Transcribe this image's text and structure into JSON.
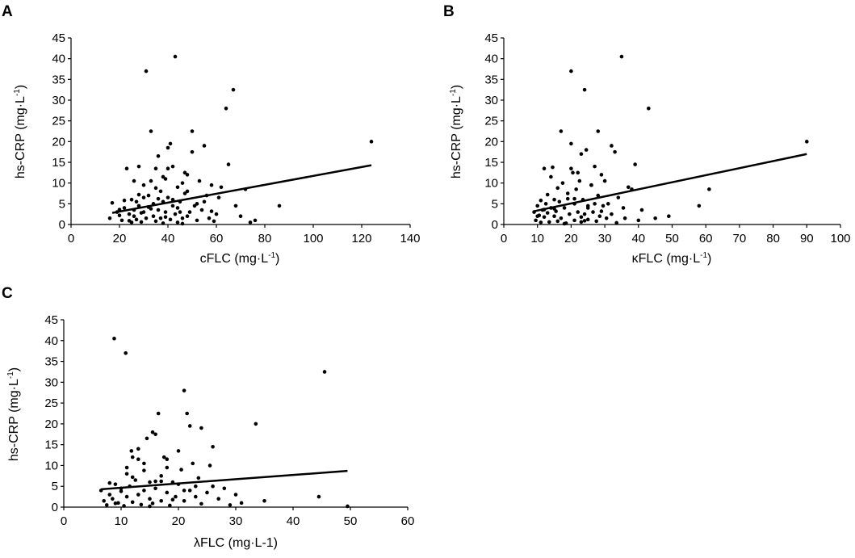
{
  "chart_data": [
    {
      "type": "scatter",
      "panel": "A",
      "xlabel": "cFLC (mg·L-1)",
      "ylabel": "hs-CRP (mg·L-1)",
      "xlim": [
        0,
        140
      ],
      "ylim": [
        0,
        45
      ],
      "xticks": [
        0,
        20,
        40,
        60,
        80,
        100,
        120,
        140
      ],
      "yticks": [
        0,
        5,
        10,
        15,
        20,
        25,
        30,
        35,
        40,
        45
      ],
      "trendline": [
        [
          17,
          2.8
        ],
        [
          124,
          14.3
        ]
      ],
      "points": [
        [
          17,
          5.2
        ],
        [
          16,
          1.5
        ],
        [
          19,
          3.0
        ],
        [
          20,
          2.2
        ],
        [
          21,
          1.0
        ],
        [
          22,
          4.0
        ],
        [
          23,
          13.5
        ],
        [
          24,
          2.5
        ],
        [
          25,
          6.0
        ],
        [
          25,
          0.5
        ],
        [
          26,
          10.5
        ],
        [
          26,
          3.5
        ],
        [
          27,
          5.5
        ],
        [
          27,
          1.2
        ],
        [
          28,
          14.0
        ],
        [
          28,
          4.5
        ],
        [
          29,
          2.8
        ],
        [
          29,
          0.6
        ],
        [
          30,
          6.5
        ],
        [
          30,
          3.0
        ],
        [
          31,
          37.0
        ],
        [
          31,
          1.5
        ],
        [
          32,
          7.0
        ],
        [
          32,
          4.2
        ],
        [
          33,
          22.5
        ],
        [
          33,
          10.5
        ],
        [
          34,
          2.0
        ],
        [
          34,
          5.0
        ],
        [
          35,
          13.5
        ],
        [
          35,
          0.8
        ],
        [
          36,
          16.5
        ],
        [
          36,
          3.5
        ],
        [
          37,
          8.0
        ],
        [
          37,
          1.5
        ],
        [
          38,
          5.5
        ],
        [
          38,
          0.3
        ],
        [
          39,
          11.0
        ],
        [
          39,
          3.0
        ],
        [
          40,
          18.5
        ],
        [
          40,
          6.5
        ],
        [
          41,
          19.5
        ],
        [
          41,
          1.2
        ],
        [
          42,
          14.0
        ],
        [
          42,
          4.5
        ],
        [
          43,
          40.5
        ],
        [
          43,
          2.5
        ],
        [
          44,
          9.0
        ],
        [
          44,
          0.5
        ],
        [
          45,
          5.5
        ],
        [
          45,
          3.0
        ],
        [
          46,
          10.0
        ],
        [
          46,
          1.5
        ],
        [
          47,
          7.5
        ],
        [
          48,
          12.0
        ],
        [
          48,
          2.0
        ],
        [
          49,
          3.0
        ],
        [
          50,
          22.5
        ],
        [
          50,
          17.5
        ],
        [
          51,
          4.5
        ],
        [
          52,
          1.0
        ],
        [
          53,
          10.5
        ],
        [
          54,
          3.5
        ],
        [
          55,
          19.0
        ],
        [
          55,
          5.5
        ],
        [
          56,
          7.0
        ],
        [
          57,
          1.5
        ],
        [
          58,
          9.5
        ],
        [
          59,
          0.8
        ],
        [
          60,
          2.5
        ],
        [
          61,
          6.5
        ],
        [
          62,
          9.0
        ],
        [
          64,
          28.0
        ],
        [
          65,
          14.5
        ],
        [
          67,
          32.5
        ],
        [
          68,
          4.5
        ],
        [
          70,
          2.0
        ],
        [
          72,
          8.5
        ],
        [
          74,
          0.5
        ],
        [
          76,
          1.0
        ],
        [
          86,
          4.5
        ],
        [
          124,
          20.0
        ],
        [
          22,
          5.8
        ],
        [
          28,
          7.2
        ],
        [
          35,
          8.8
        ],
        [
          42,
          6.0
        ],
        [
          47,
          12.5
        ],
        [
          24,
          0.9
        ],
        [
          30,
          9.5
        ],
        [
          38,
          11.5
        ],
        [
          46,
          0.2
        ],
        [
          33,
          3.8
        ],
        [
          36,
          6.2
        ],
        [
          39,
          1.8
        ],
        [
          44,
          4.0
        ],
        [
          52,
          5.0
        ],
        [
          58,
          3.2
        ],
        [
          26,
          2.0
        ],
        [
          20,
          3.6
        ],
        [
          40,
          13.5
        ],
        [
          48,
          8.0
        ]
      ]
    },
    {
      "type": "scatter",
      "panel": "B",
      "xlabel": "κFLC (mg·L-1)",
      "ylabel": "hs-CRP (mg·L-1)",
      "xlim": [
        0,
        100
      ],
      "ylim": [
        0,
        45
      ],
      "xticks": [
        0,
        10,
        20,
        30,
        40,
        50,
        60,
        70,
        80,
        90,
        100
      ],
      "yticks": [
        0,
        5,
        10,
        15,
        20,
        25,
        30,
        35,
        40,
        45
      ],
      "trendline": [
        [
          9,
          3.2
        ],
        [
          90,
          17.0
        ]
      ],
      "points": [
        [
          9,
          3.0
        ],
        [
          9.5,
          1.0
        ],
        [
          10,
          4.5
        ],
        [
          10.5,
          2.2
        ],
        [
          11,
          0.5
        ],
        [
          11.5,
          3.5
        ],
        [
          12,
          13.5
        ],
        [
          12,
          1.8
        ],
        [
          12.5,
          5.0
        ],
        [
          13,
          2.8
        ],
        [
          13.5,
          0.6
        ],
        [
          14,
          4.0
        ],
        [
          14.5,
          13.8
        ],
        [
          15,
          6.0
        ],
        [
          15,
          2.0
        ],
        [
          15.5,
          3.2
        ],
        [
          16,
          0.8
        ],
        [
          16.5,
          5.5
        ],
        [
          17,
          22.5
        ],
        [
          17,
          1.5
        ],
        [
          17.5,
          10.0
        ],
        [
          18,
          4.0
        ],
        [
          18.5,
          0.3
        ],
        [
          19,
          7.5
        ],
        [
          19.5,
          2.5
        ],
        [
          20,
          37.0
        ],
        [
          20,
          19.5
        ],
        [
          20.5,
          12.5
        ],
        [
          21,
          5.0
        ],
        [
          21,
          1.0
        ],
        [
          21.5,
          8.5
        ],
        [
          22,
          3.0
        ],
        [
          22.5,
          10.5
        ],
        [
          23,
          17.0
        ],
        [
          23,
          0.6
        ],
        [
          23.5,
          6.0
        ],
        [
          24,
          32.5
        ],
        [
          24,
          2.5
        ],
        [
          24.5,
          18.0
        ],
        [
          25,
          4.5
        ],
        [
          25,
          1.2
        ],
        [
          26,
          9.5
        ],
        [
          26.5,
          3.0
        ],
        [
          27,
          14.0
        ],
        [
          27.5,
          0.8
        ],
        [
          28,
          22.5
        ],
        [
          28,
          7.0
        ],
        [
          28.5,
          2.0
        ],
        [
          29,
          12.0
        ],
        [
          29.5,
          4.5
        ],
        [
          30,
          10.5
        ],
        [
          30.5,
          1.5
        ],
        [
          31,
          5.0
        ],
        [
          32,
          19.0
        ],
        [
          32,
          2.5
        ],
        [
          33,
          17.5
        ],
        [
          33.5,
          0.4
        ],
        [
          34,
          6.5
        ],
        [
          35,
          40.5
        ],
        [
          35.5,
          4.0
        ],
        [
          36,
          1.5
        ],
        [
          37,
          9.0
        ],
        [
          38,
          8.5
        ],
        [
          39,
          14.5
        ],
        [
          40,
          1.0
        ],
        [
          41,
          3.5
        ],
        [
          43,
          28.0
        ],
        [
          45,
          1.5
        ],
        [
          49,
          2.0
        ],
        [
          58,
          4.5
        ],
        [
          61,
          8.5
        ],
        [
          90,
          20.0
        ],
        [
          11,
          5.8
        ],
        [
          13,
          7.2
        ],
        [
          16,
          8.8
        ],
        [
          19,
          6.2
        ],
        [
          22,
          12.5
        ],
        [
          24,
          0.9
        ],
        [
          26,
          9.5
        ],
        [
          14,
          11.5
        ],
        [
          18,
          0.2
        ],
        [
          15,
          3.8
        ],
        [
          21,
          6.2
        ],
        [
          23,
          1.8
        ],
        [
          25,
          4.0
        ],
        [
          27,
          5.0
        ],
        [
          29,
          3.2
        ],
        [
          10,
          2.0
        ],
        [
          12,
          3.6
        ],
        [
          20,
          13.5
        ]
      ]
    },
    {
      "type": "scatter",
      "panel": "C",
      "xlabel": "λFLC (mg·L-1)",
      "ylabel": "hs-CRP (mg·L-1)",
      "xlim": [
        0,
        60
      ],
      "ylim": [
        0,
        45
      ],
      "xticks": [
        0,
        10,
        20,
        30,
        40,
        50,
        60
      ],
      "yticks": [
        0,
        5,
        10,
        15,
        20,
        25,
        30,
        35,
        40,
        45
      ],
      "trendline": [
        [
          6.5,
          4.3
        ],
        [
          49.5,
          8.7
        ]
      ],
      "points": [
        [
          6.5,
          4.0
        ],
        [
          7,
          1.5
        ],
        [
          7.5,
          0.5
        ],
        [
          8,
          3.0
        ],
        [
          8.5,
          2.0
        ],
        [
          8.8,
          40.5
        ],
        [
          9,
          5.5
        ],
        [
          9.5,
          1.0
        ],
        [
          10,
          4.5
        ],
        [
          10.5,
          0.3
        ],
        [
          10.8,
          37.0
        ],
        [
          11,
          8.0
        ],
        [
          11,
          2.5
        ],
        [
          11.5,
          5.0
        ],
        [
          11.8,
          13.5
        ],
        [
          12,
          12.0
        ],
        [
          12,
          1.2
        ],
        [
          12.5,
          6.5
        ],
        [
          13,
          14.0
        ],
        [
          13,
          3.0
        ],
        [
          13.5,
          0.6
        ],
        [
          14,
          10.5
        ],
        [
          14,
          4.0
        ],
        [
          14.5,
          16.5
        ],
        [
          15,
          2.0
        ],
        [
          15,
          6.0
        ],
        [
          15.5,
          18.0
        ],
        [
          15.5,
          0.9
        ],
        [
          16,
          17.5
        ],
        [
          16,
          4.5
        ],
        [
          16.5,
          22.5
        ],
        [
          17,
          7.5
        ],
        [
          17,
          1.5
        ],
        [
          17.5,
          12.0
        ],
        [
          18,
          3.5
        ],
        [
          18,
          9.5
        ],
        [
          18.5,
          0.4
        ],
        [
          19,
          6.0
        ],
        [
          19.5,
          2.5
        ],
        [
          20,
          13.5
        ],
        [
          20,
          5.5
        ],
        [
          20.5,
          9.0
        ],
        [
          21,
          28.0
        ],
        [
          21,
          1.5
        ],
        [
          21.5,
          22.5
        ],
        [
          22,
          19.5
        ],
        [
          22,
          4.0
        ],
        [
          22.5,
          10.5
        ],
        [
          23,
          2.5
        ],
        [
          23.5,
          7.0
        ],
        [
          24,
          19.0
        ],
        [
          24,
          0.8
        ],
        [
          25,
          3.5
        ],
        [
          25.5,
          10.0
        ],
        [
          26,
          14.5
        ],
        [
          26,
          5.0
        ],
        [
          27,
          2.0
        ],
        [
          28,
          4.5
        ],
        [
          29,
          0.5
        ],
        [
          30,
          3.0
        ],
        [
          31,
          1.0
        ],
        [
          33.5,
          20.0
        ],
        [
          35,
          1.5
        ],
        [
          44.5,
          2.5
        ],
        [
          45.5,
          32.5
        ],
        [
          49.5,
          0.2
        ],
        [
          8,
          5.8
        ],
        [
          12,
          7.2
        ],
        [
          14,
          8.8
        ],
        [
          16,
          6.2
        ],
        [
          18,
          11.5
        ],
        [
          9,
          0.9
        ],
        [
          11,
          9.5
        ],
        [
          13,
          11.5
        ],
        [
          15,
          0.2
        ],
        [
          10,
          3.8
        ],
        [
          17,
          6.2
        ],
        [
          19,
          1.8
        ],
        [
          21,
          4.0
        ],
        [
          23,
          5.0
        ]
      ]
    }
  ],
  "panels": [
    {
      "label": "A",
      "xlabel": "cFLC (mg·L",
      "xlabel_sup": "-1",
      "xlabel_end": ")",
      "ylabel": "hs-CRP (mg·L",
      "ylabel_sup": "-1",
      "ylabel_end": ")"
    },
    {
      "label": "B",
      "xlabel": "κFLC (mg·L",
      "xlabel_sup": "-1",
      "xlabel_end": ")",
      "ylabel": "hs-CRP (mg·L",
      "ylabel_sup": "-1",
      "ylabel_end": ")"
    },
    {
      "label": "C",
      "xlabel": "λFLC (mg·L-1)",
      "xlabel_sup": "",
      "xlabel_end": "",
      "ylabel": "hs-CRP (mg·L",
      "ylabel_sup": "-1",
      "ylabel_end": ")"
    }
  ]
}
